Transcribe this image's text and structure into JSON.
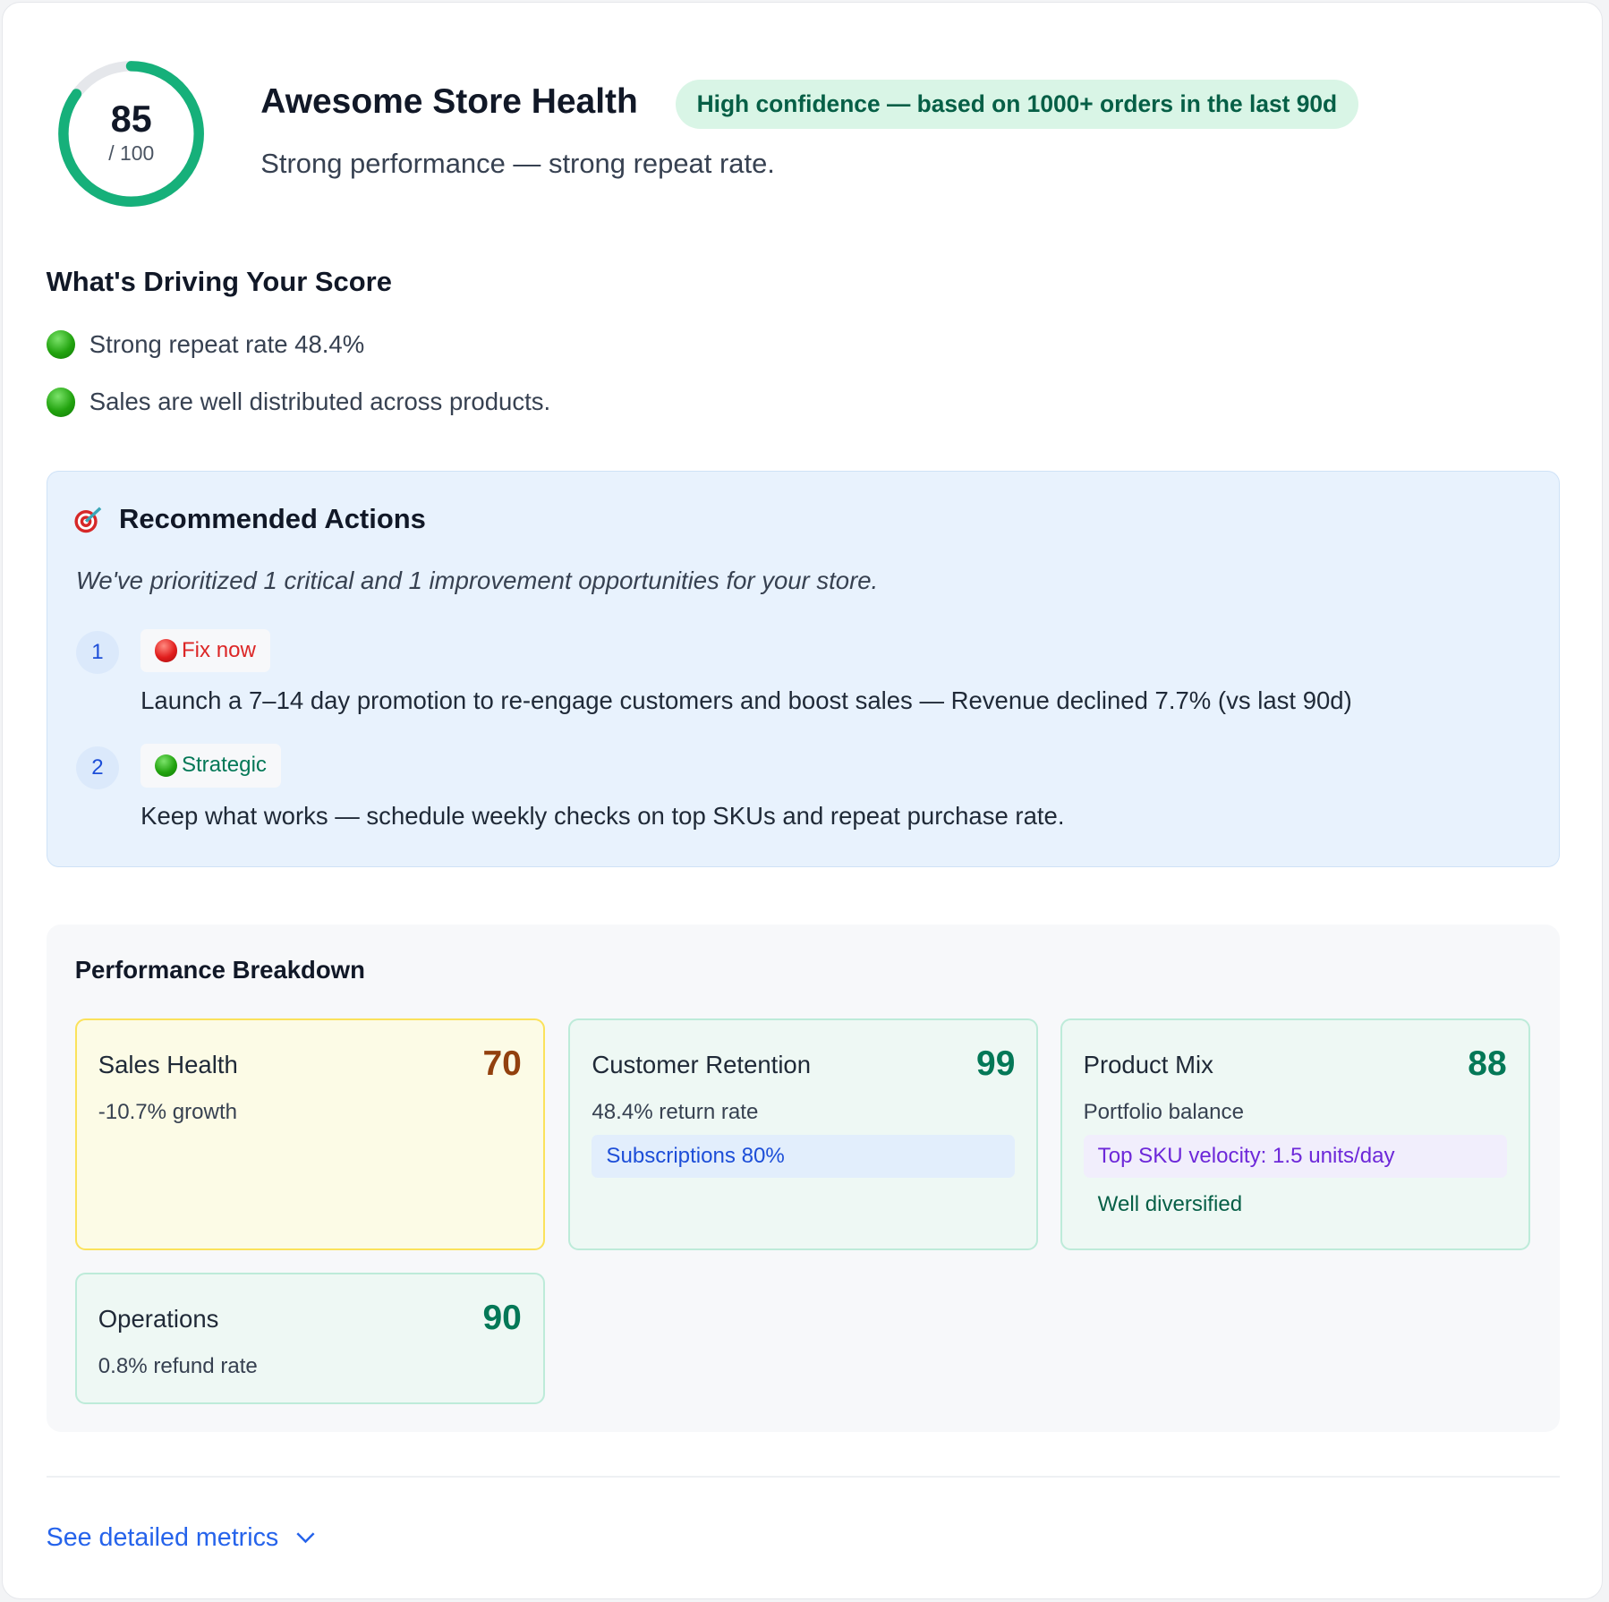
{
  "header": {
    "score": "85",
    "score_max": "/ 100",
    "score_fraction": 0.85,
    "title": "Awesome Store Health",
    "confidence_badge": "High confidence — based on 1000+ orders in the last 90d",
    "subtitle": "Strong performance — strong repeat rate."
  },
  "drivers": {
    "heading": "What's Driving Your Score",
    "items": [
      {
        "icon": "green-circle-icon",
        "text": "Strong repeat rate 48.4%"
      },
      {
        "icon": "green-circle-icon",
        "text": "Sales are well distributed across products."
      }
    ]
  },
  "recommended": {
    "icon": "direct-hit-target-icon",
    "title": "Recommended Actions",
    "description": "We've prioritized 1 critical and 1 improvement opportunities for your store.",
    "actions": [
      {
        "number": "1",
        "tag": "Fix now",
        "tag_color": "#dc2626",
        "text": "Launch a 7–14 day promotion to re-engage customers and boost sales — Revenue declined 7.7% (vs last 90d)"
      },
      {
        "number": "2",
        "tag": "Strategic",
        "tag_color": "#047857",
        "text": "Keep what works — schedule weekly checks on top SKUs and repeat purchase rate."
      }
    ]
  },
  "performance": {
    "title": "Performance Breakdown",
    "cards": [
      {
        "name": "Sales Health",
        "score": "70",
        "sub": "-10.7% growth"
      },
      {
        "name": "Customer Retention",
        "score": "99",
        "sub": "48.4% return rate",
        "chip": "Subscriptions 80%"
      },
      {
        "name": "Product Mix",
        "score": "88",
        "sub": "Portfolio balance",
        "chip": "Top SKU velocity: 1.5 units/day",
        "note": "Well diversified"
      },
      {
        "name": "Operations",
        "score": "90",
        "sub": "0.8% refund rate"
      }
    ]
  },
  "footer": {
    "link": "See detailed metrics"
  },
  "colors": {
    "accent_green": "#16b07a",
    "link_blue": "#2563eb",
    "warning_amber": "#92400e"
  }
}
